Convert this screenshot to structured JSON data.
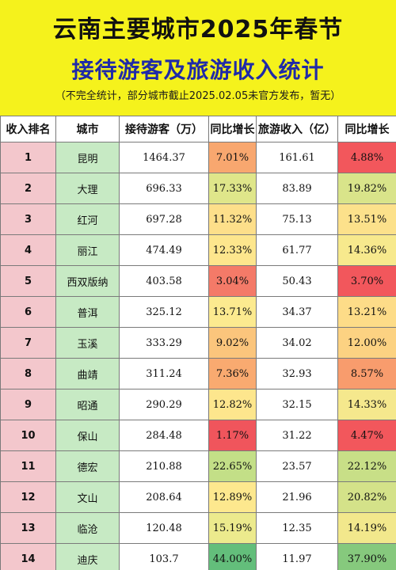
{
  "header": {
    "title_line1": "云南主要城市2025年春节",
    "title_line2": "接待游客及旅游收入统计",
    "note": "（不完全统计，部分城市截止2025.02.05未官方发布，暂无）"
  },
  "table": {
    "columns": [
      "收入排名",
      "城市",
      "接待游客（万）",
      "同比增长",
      "旅游收入（亿）",
      "同比增长"
    ],
    "rows": [
      {
        "rank": "1",
        "city": "昆明",
        "visitors": "1464.37",
        "visitors_growth": "7.01%",
        "revenue": "161.61",
        "revenue_growth": "4.88%",
        "vg_color": "#f8a76f",
        "rg_color": "#f2575c"
      },
      {
        "rank": "2",
        "city": "大理",
        "visitors": "696.33",
        "visitors_growth": "17.33%",
        "revenue": "83.89",
        "revenue_growth": "19.82%",
        "vg_color": "#dfe68a",
        "rg_color": "#d9e48a"
      },
      {
        "rank": "3",
        "city": "红河",
        "visitors": "697.28",
        "visitors_growth": "11.32%",
        "revenue": "75.13",
        "revenue_growth": "13.51%",
        "vg_color": "#fddf8a",
        "rg_color": "#fce18b"
      },
      {
        "rank": "4",
        "city": "丽江",
        "visitors": "474.49",
        "visitors_growth": "12.33%",
        "revenue": "61.77",
        "revenue_growth": "14.36%",
        "vg_color": "#fde68d",
        "rg_color": "#f7e98d"
      },
      {
        "rank": "5",
        "city": "西双版纳",
        "visitors": "403.58",
        "visitors_growth": "3.04%",
        "revenue": "50.43",
        "revenue_growth": "3.70%",
        "vg_color": "#f47a68",
        "rg_color": "#f2575c"
      },
      {
        "rank": "6",
        "city": "普洱",
        "visitors": "325.12",
        "visitors_growth": "13.71%",
        "revenue": "34.37",
        "revenue_growth": "13.21%",
        "vg_color": "#fcea8f",
        "rg_color": "#fddc88"
      },
      {
        "rank": "7",
        "city": "玉溪",
        "visitors": "333.29",
        "visitors_growth": "9.02%",
        "revenue": "34.02",
        "revenue_growth": "12.00%",
        "vg_color": "#fbc57c",
        "rg_color": "#fcd282"
      },
      {
        "rank": "8",
        "city": "曲靖",
        "visitors": "311.24",
        "visitors_growth": "7.36%",
        "revenue": "32.93",
        "revenue_growth": "8.57%",
        "vg_color": "#f9aa70",
        "rg_color": "#f89c6d"
      },
      {
        "rank": "9",
        "city": "昭通",
        "visitors": "290.29",
        "visitors_growth": "12.82%",
        "revenue": "32.15",
        "revenue_growth": "14.33%",
        "vg_color": "#fde68d",
        "rg_color": "#f5e88d"
      },
      {
        "rank": "10",
        "city": "保山",
        "visitors": "284.48",
        "visitors_growth": "1.17%",
        "revenue": "31.22",
        "revenue_growth": "4.47%",
        "vg_color": "#f0555c",
        "rg_color": "#f2575c"
      },
      {
        "rank": "11",
        "city": "德宏",
        "visitors": "210.88",
        "visitors_growth": "22.65%",
        "revenue": "23.57",
        "revenue_growth": "22.12%",
        "vg_color": "#c3df87",
        "rg_color": "#c8df87"
      },
      {
        "rank": "12",
        "city": "文山",
        "visitors": "208.64",
        "visitors_growth": "12.89%",
        "revenue": "21.96",
        "revenue_growth": "20.82%",
        "vg_color": "#fde88e",
        "rg_color": "#d4e289"
      },
      {
        "rank": "13",
        "city": "临沧",
        "visitors": "120.48",
        "visitors_growth": "15.19%",
        "revenue": "12.35",
        "revenue_growth": "14.19%",
        "vg_color": "#ecea8d",
        "rg_color": "#f2e88c"
      },
      {
        "rank": "14",
        "city": "迪庆",
        "visitors": "103.7",
        "visitors_growth": "44.00%",
        "revenue": "11.97",
        "revenue_growth": "37.90%",
        "vg_color": "#63be7b",
        "rg_color": "#86c97d"
      }
    ]
  },
  "colors": {
    "banner": "#f5f21c",
    "title_line2": "#1f2aa8",
    "rank_cell": "#f3c7cc",
    "city_cell": "#c7eac4"
  }
}
